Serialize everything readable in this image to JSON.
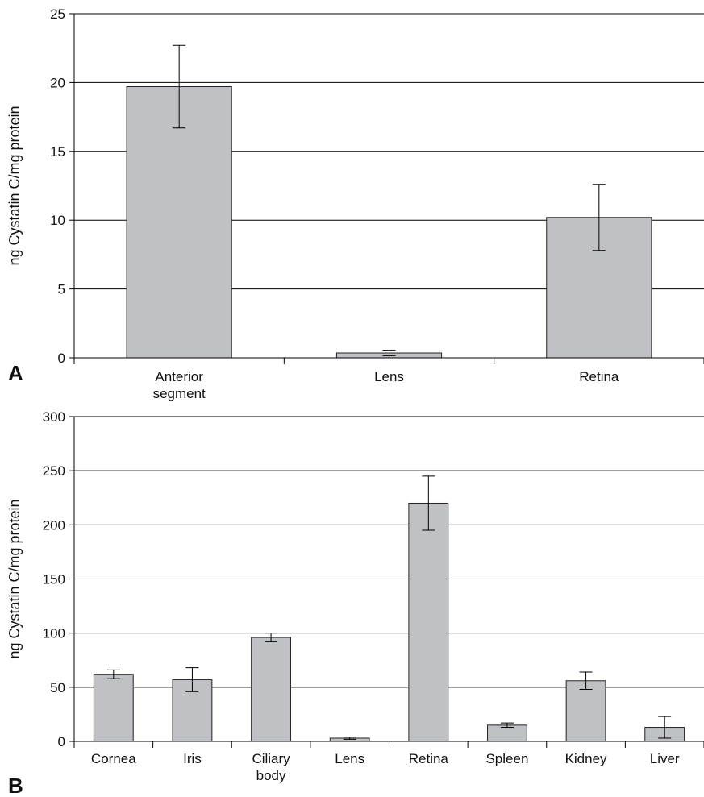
{
  "chart_data": [
    {
      "panel_label": "A",
      "type": "bar",
      "ylabel": "ng Cystatin C/mg protein",
      "categories": [
        "Anterior segment",
        "Lens",
        "Retina"
      ],
      "values": [
        19.7,
        0.35,
        10.2
      ],
      "errors": [
        3.0,
        0.2,
        2.4
      ],
      "ylim": [
        0,
        25
      ],
      "yticks": [
        0,
        5,
        10,
        15,
        20,
        25
      ],
      "grid": true,
      "legend": "none",
      "bar_color": "#c0c1c4"
    },
    {
      "panel_label": "B",
      "type": "bar",
      "ylabel": "ng Cystatin C/mg protein",
      "categories": [
        "Cornea",
        "Iris",
        "Ciliary body",
        "Lens",
        "Retina",
        "Spleen",
        "Kidney",
        "Liver"
      ],
      "values": [
        62,
        57,
        96,
        3,
        220,
        15,
        56,
        13
      ],
      "errors": [
        4,
        11,
        4,
        1,
        25,
        2,
        8,
        10
      ],
      "ylim": [
        0,
        300
      ],
      "yticks": [
        0,
        50,
        100,
        150,
        200,
        250,
        300
      ],
      "grid": true,
      "legend": "none",
      "bar_color": "#c0c1c4"
    }
  ]
}
